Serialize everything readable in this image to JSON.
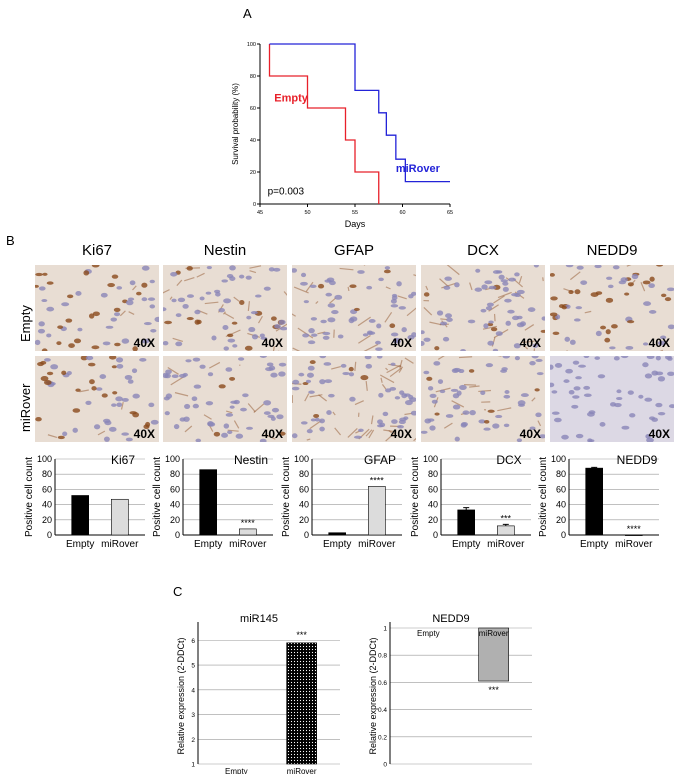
{
  "panels": {
    "a": "A",
    "b": "B",
    "c": "C"
  },
  "survival": {
    "chart_data": {
      "type": "line",
      "xlabel": "Days",
      "ylabel": "Survival probability (%)",
      "xlim": [
        45,
        65
      ],
      "ylim": [
        0,
        100
      ],
      "xticks": [
        45,
        50,
        55,
        60,
        65
      ],
      "yticks": [
        0,
        20,
        40,
        60,
        80,
        100
      ],
      "annotation": "p=0.003",
      "series": [
        {
          "name": "Empty",
          "color": "#e8202a",
          "x": [
            46,
            46,
            50,
            50,
            54,
            54,
            55,
            55,
            57.5,
            57.5
          ],
          "y": [
            100,
            80,
            80,
            60,
            60,
            40,
            40,
            20,
            20,
            0
          ]
        },
        {
          "name": "miRover",
          "color": "#2323d8",
          "x": [
            46,
            55,
            55,
            57.5,
            57.5,
            58.3,
            58.3,
            59.3,
            59.3,
            60.3,
            60.3,
            65
          ],
          "y": [
            100,
            100,
            71,
            71,
            57,
            57,
            43,
            43,
            28,
            28,
            14,
            14
          ]
        }
      ]
    }
  },
  "markers": [
    "Ki67",
    "Nestin",
    "GFAP",
    "DCX",
    "NEDD9"
  ],
  "row_labels": [
    "Empty",
    "miRover"
  ],
  "magnification": "40X",
  "stain_colors": {
    "hematoxylin": "#8a86b8",
    "dab": "#8a4a1c",
    "background": "#e8ddd3"
  },
  "bar_charts": {
    "chart_data": [
      {
        "type": "bar",
        "title": "Ki67",
        "ylabel": "Positive cell count",
        "categories": [
          "Empty",
          "miRover"
        ],
        "values": [
          52,
          47
        ],
        "errors": [
          0,
          0
        ],
        "colors": [
          "#000000",
          "#dcdcdc"
        ],
        "ylim": [
          0,
          100
        ],
        "yticks": [
          0,
          20,
          40,
          60,
          80,
          100
        ],
        "significance": ""
      },
      {
        "type": "bar",
        "title": "Nestin",
        "ylabel": "Positive cell count",
        "categories": [
          "Empty",
          "miRover"
        ],
        "values": [
          86,
          8
        ],
        "errors": [
          0,
          0
        ],
        "colors": [
          "#000000",
          "#dcdcdc"
        ],
        "ylim": [
          0,
          100
        ],
        "yticks": [
          0,
          20,
          40,
          60,
          80,
          100
        ],
        "significance": "****"
      },
      {
        "type": "bar",
        "title": "GFAP",
        "ylabel": "Positive cell count",
        "categories": [
          "Empty",
          "miRover"
        ],
        "values": [
          3,
          64
        ],
        "errors": [
          0,
          0
        ],
        "colors": [
          "#000000",
          "#dcdcdc"
        ],
        "ylim": [
          0,
          100
        ],
        "yticks": [
          0,
          20,
          40,
          60,
          80,
          100
        ],
        "significance": "****"
      },
      {
        "type": "bar",
        "title": "DCX",
        "ylabel": "Positive cell count",
        "categories": [
          "Empty",
          "miRover"
        ],
        "values": [
          33,
          12
        ],
        "errors": [
          3,
          2
        ],
        "colors": [
          "#000000",
          "#dcdcdc"
        ],
        "ylim": [
          0,
          100
        ],
        "yticks": [
          0,
          20,
          40,
          60,
          80,
          100
        ],
        "significance": "***"
      },
      {
        "type": "bar",
        "title": "NEDD9",
        "ylabel": "Positive cell count",
        "categories": [
          "Empty",
          "miRover"
        ],
        "values": [
          88,
          0
        ],
        "errors": [
          1,
          0
        ],
        "colors": [
          "#000000",
          "#dcdcdc"
        ],
        "ylim": [
          0,
          100
        ],
        "yticks": [
          0,
          20,
          40,
          60,
          80,
          100
        ],
        "significance": "****"
      }
    ]
  },
  "qpcr": {
    "chart_data": [
      {
        "type": "bar",
        "title": "miR145",
        "ylabel": "Relative expression (2-DDCt)",
        "categories": [
          "Empty",
          "miRover"
        ],
        "values": [
          1,
          5.9
        ],
        "baseline": 1,
        "ylim": [
          1,
          6.5
        ],
        "yticks": [
          1,
          2,
          3,
          4,
          5,
          6
        ],
        "significance": "***",
        "fill": "dotted-black"
      },
      {
        "type": "bar",
        "title": "NEDD9",
        "ylabel": "Relative expression (2-DDCt)",
        "categories": [
          "Empty",
          "miRover"
        ],
        "values": [
          1,
          0.61
        ],
        "baseline": 1,
        "ylim": [
          0,
          1
        ],
        "yticks": [
          0,
          0.2,
          0.4,
          0.6,
          0.8,
          1
        ],
        "significance": "***",
        "fill": "#b0b0b0"
      }
    ]
  }
}
